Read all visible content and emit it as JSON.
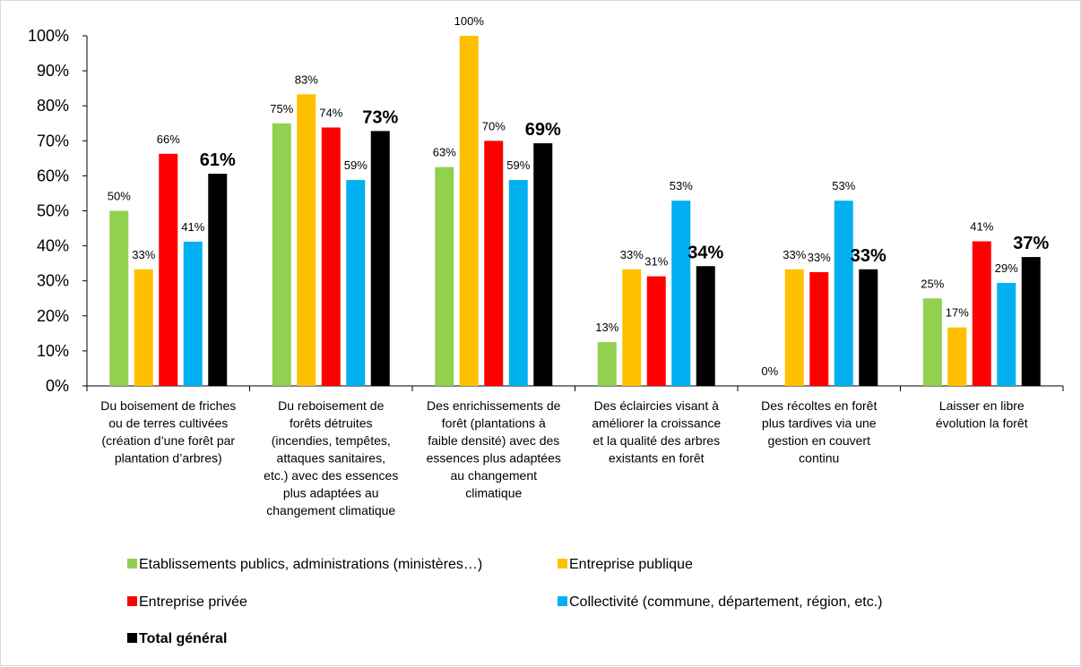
{
  "chart_data": {
    "type": "bar",
    "title": "",
    "xlabel": "",
    "ylabel": "",
    "ylim": [
      0,
      100
    ],
    "yticks": [
      "0%",
      "10%",
      "20%",
      "30%",
      "40%",
      "50%",
      "60%",
      "70%",
      "80%",
      "90%",
      "100%"
    ],
    "grid": false,
    "legend_position": "bottom",
    "categories": [
      [
        "Du boisement de friches",
        "ou de terres cultivées",
        "(création d’une forêt par",
        "plantation d’arbres)"
      ],
      [
        "Du reboisement de",
        "forêts détruites",
        "(incendies, tempêtes,",
        "attaques sanitaires,",
        "etc.) avec des essences",
        "plus adaptées au",
        "changement climatique"
      ],
      [
        "Des enrichissements de",
        "forêt (plantations à",
        "faible densité) avec des",
        "essences plus adaptées",
        "au changement",
        "climatique"
      ],
      [
        "Des éclaircies visant à",
        "améliorer la croissance",
        "et la qualité des arbres",
        "existants en forêt"
      ],
      [
        "Des récoltes en forêt",
        "plus tardives via une",
        "gestion en couvert",
        "continu"
      ],
      [
        "Laisser en libre",
        "évolution la forêt"
      ]
    ],
    "series": [
      {
        "name": "Etablissements publics, administrations (ministères…)",
        "color": "#92d050",
        "values": [
          50,
          75,
          62.5,
          12.5,
          0,
          25
        ],
        "labels": [
          "50%",
          "75%",
          "63%",
          "13%",
          "0%",
          "25%"
        ]
      },
      {
        "name": "Entreprise publique",
        "color": "#ffc000",
        "values": [
          33.3,
          83.3,
          100,
          33.3,
          33.3,
          16.7
        ],
        "labels": [
          "33%",
          "83%",
          "100%",
          "33%",
          "33%",
          "17%"
        ]
      },
      {
        "name": "Entreprise privée",
        "color": "#ff0000",
        "values": [
          66.3,
          73.8,
          70,
          31.3,
          32.5,
          41.3
        ],
        "labels": [
          "66%",
          "74%",
          "70%",
          "31%",
          "33%",
          "41%"
        ]
      },
      {
        "name": "Collectivité (commune, département, région, etc.)",
        "color": "#00b0f0",
        "values": [
          41.2,
          58.8,
          58.8,
          52.9,
          52.9,
          29.4
        ],
        "labels": [
          "41%",
          "59%",
          "59%",
          "53%",
          "53%",
          "29%"
        ]
      },
      {
        "name": "Total général",
        "color": "#000000",
        "values": [
          60.6,
          72.8,
          69.3,
          34.2,
          33.3,
          36.8
        ],
        "labels": [
          "61%",
          "73%",
          "69%",
          "34%",
          "33%",
          "37%"
        ]
      }
    ]
  }
}
